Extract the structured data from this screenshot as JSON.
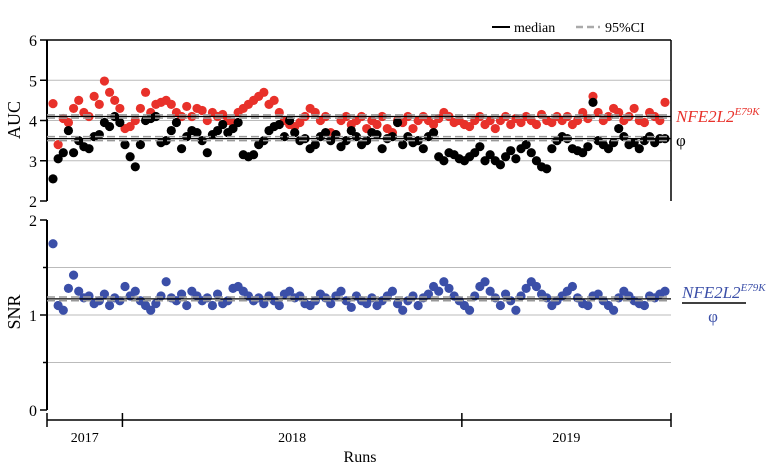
{
  "chart_data": {
    "type": "scatter",
    "xlabel": "Runs",
    "legend": {
      "placement": "top-right",
      "items": [
        {
          "label": "median",
          "style": "solid"
        },
        {
          "label": "95%CI",
          "style": "dashed"
        }
      ]
    },
    "years": [
      {
        "label": "2017",
        "runs": [
          1,
          14
        ]
      },
      {
        "label": "2018",
        "runs": [
          15,
          80
        ]
      },
      {
        "label": "2019",
        "runs": [
          81,
          120
        ]
      }
    ],
    "panels": [
      {
        "ylabel": "AUC",
        "ylim": [
          2,
          6
        ],
        "yticks": [
          "2",
          "3",
          "4",
          "5",
          "6"
        ],
        "grid": [
          3,
          4,
          5
        ],
        "series": [
          {
            "name": "NFE2L2",
            "sup": "E79K",
            "color": "#e8312a",
            "median": 4.1,
            "ci": [
              4.06,
              4.14
            ],
            "values": [
              4.42,
              3.4,
              4.05,
              3.95,
              4.3,
              4.5,
              4.2,
              4.1,
              4.6,
              4.4,
              4.98,
              4.7,
              4.5,
              4.3,
              3.8,
              3.85,
              4.0,
              4.3,
              4.7,
              4.2,
              4.4,
              4.45,
              4.5,
              4.4,
              4.2,
              4.1,
              4.35,
              4.1,
              4.3,
              4.25,
              4.0,
              4.2,
              4.1,
              4.15,
              4.0,
              3.95,
              4.2,
              4.3,
              4.4,
              4.5,
              4.6,
              4.7,
              4.4,
              4.5,
              4.2,
              4.0,
              3.9,
              3.85,
              3.95,
              4.1,
              4.3,
              4.2,
              4.0,
              4.1,
              3.7,
              3.65,
              4.0,
              4.1,
              3.9,
              4.0,
              4.1,
              3.8,
              4.0,
              3.9,
              4.1,
              3.8,
              3.7,
              4.0,
              3.95,
              4.1,
              3.8,
              4.0,
              4.1,
              4.0,
              3.9,
              4.05,
              4.2,
              4.1,
              3.95,
              4.0,
              3.9,
              3.85,
              4.0,
              4.1,
              3.9,
              4.0,
              3.8,
              4.0,
              4.1,
              3.9,
              4.05,
              3.95,
              4.1,
              4.0,
              3.9,
              4.15,
              4.0,
              3.95,
              4.1,
              4.0,
              4.1,
              3.9,
              4.0,
              4.2,
              4.05,
              4.6,
              4.2,
              4.0,
              4.1,
              4.3,
              4.2,
              4.0,
              4.1,
              4.3,
              4.0,
              3.95,
              4.2,
              4.1,
              4.0,
              4.45
            ]
          },
          {
            "name": "φ",
            "color": "#000000",
            "median": 3.55,
            "ci": [
              3.5,
              3.6
            ],
            "values": [
              2.55,
              3.05,
              3.2,
              3.75,
              3.2,
              3.5,
              3.35,
              3.3,
              3.6,
              3.65,
              3.95,
              3.85,
              4.1,
              3.95,
              3.4,
              3.1,
              2.85,
              3.4,
              4.0,
              4.05,
              4.1,
              3.45,
              3.5,
              3.75,
              3.95,
              3.3,
              3.6,
              3.75,
              3.7,
              3.5,
              3.2,
              3.65,
              3.75,
              3.9,
              3.7,
              3.8,
              3.95,
              3.15,
              3.1,
              3.15,
              3.4,
              3.5,
              3.75,
              3.85,
              3.9,
              3.6,
              4.0,
              3.7,
              3.5,
              3.55,
              3.3,
              3.4,
              3.6,
              3.7,
              3.5,
              3.65,
              3.35,
              3.5,
              3.75,
              3.6,
              3.4,
              3.5,
              3.7,
              3.65,
              3.3,
              3.55,
              3.6,
              3.95,
              3.4,
              3.6,
              3.45,
              3.5,
              3.3,
              3.6,
              3.7,
              3.1,
              3.0,
              3.2,
              3.15,
              3.05,
              3.0,
              3.1,
              3.2,
              3.35,
              3.0,
              3.15,
              3.0,
              2.9,
              3.1,
              3.25,
              3.05,
              3.3,
              3.4,
              3.2,
              3.0,
              2.85,
              2.8,
              3.3,
              3.5,
              3.6,
              3.55,
              3.3,
              3.25,
              3.2,
              3.35,
              4.45,
              3.5,
              3.4,
              3.3,
              3.45,
              3.8,
              3.6,
              3.4,
              3.45,
              3.3,
              3.5,
              3.6,
              3.45,
              3.55,
              3.55
            ]
          }
        ]
      },
      {
        "ylabel": "SNR",
        "ylim": [
          0,
          2
        ],
        "yticks": [
          "0",
          "1",
          "2"
        ],
        "grid": [
          0.5,
          1,
          1.5
        ],
        "series": [
          {
            "name": "NFE2L2",
            "sup": "E79K",
            "denominator": "φ",
            "color": "#3b4fa8",
            "median": 1.17,
            "ci": [
              1.15,
              1.19
            ],
            "values": [
              1.75,
              1.1,
              1.05,
              1.28,
              1.42,
              1.25,
              1.18,
              1.2,
              1.12,
              1.15,
              1.22,
              1.1,
              1.18,
              1.15,
              1.3,
              1.2,
              1.25,
              1.15,
              1.1,
              1.05,
              1.12,
              1.2,
              1.35,
              1.18,
              1.15,
              1.22,
              1.1,
              1.25,
              1.2,
              1.15,
              1.18,
              1.1,
              1.22,
              1.12,
              1.15,
              1.28,
              1.3,
              1.25,
              1.2,
              1.15,
              1.18,
              1.12,
              1.2,
              1.15,
              1.1,
              1.22,
              1.25,
              1.18,
              1.2,
              1.12,
              1.1,
              1.15,
              1.22,
              1.18,
              1.12,
              1.2,
              1.25,
              1.15,
              1.08,
              1.2,
              1.15,
              1.12,
              1.18,
              1.1,
              1.15,
              1.2,
              1.25,
              1.12,
              1.05,
              1.15,
              1.2,
              1.1,
              1.18,
              1.22,
              1.3,
              1.25,
              1.35,
              1.28,
              1.2,
              1.15,
              1.1,
              1.05,
              1.2,
              1.3,
              1.35,
              1.25,
              1.18,
              1.1,
              1.22,
              1.15,
              1.05,
              1.2,
              1.28,
              1.35,
              1.3,
              1.22,
              1.18,
              1.1,
              1.15,
              1.2,
              1.25,
              1.3,
              1.18,
              1.12,
              1.1,
              1.2,
              1.22,
              1.15,
              1.1,
              1.05,
              1.18,
              1.25,
              1.2,
              1.15,
              1.12,
              1.1,
              1.2,
              1.18,
              1.22,
              1.25
            ]
          }
        ]
      }
    ]
  }
}
